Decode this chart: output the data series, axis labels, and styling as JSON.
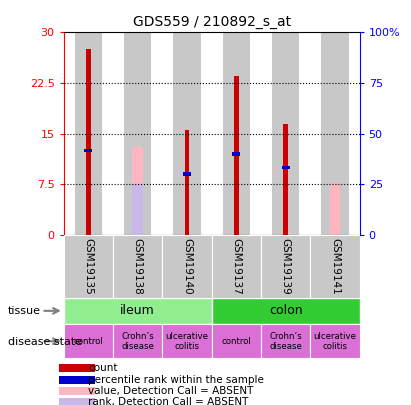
{
  "title": "GDS559 / 210892_s_at",
  "samples": [
    "GSM19135",
    "GSM19138",
    "GSM19140",
    "GSM19137",
    "GSM19139",
    "GSM19141"
  ],
  "count_values": [
    27.5,
    0,
    15.5,
    23.5,
    16.5,
    0
  ],
  "percentile_values": [
    12.5,
    0,
    9.0,
    12.0,
    10.0,
    0
  ],
  "absent_value_values": [
    0,
    13.0,
    0,
    0,
    0,
    7.5
  ],
  "absent_rank_values": [
    0,
    7.5,
    0,
    0,
    0,
    0
  ],
  "ylim": [
    0,
    30
  ],
  "yticks": [
    0,
    7.5,
    15,
    22.5,
    30
  ],
  "yticklabels_left": [
    "0",
    "7.5",
    "15",
    "22.5",
    "30"
  ],
  "yticklabels_right": [
    "0",
    "25",
    "50",
    "75",
    "100%"
  ],
  "disease_states": [
    "control",
    "Crohn’s\ndisease",
    "ulcerative\ncolitis",
    "control",
    "Crohn’s\ndisease",
    "ulcerative\ncolitis"
  ],
  "tissue_light_green": "#90EE90",
  "tissue_green": "#33CC33",
  "disease_color": "#DA70D6",
  "bar_bg_color": "#C8C8C8",
  "count_color": "#CC0000",
  "percentile_color": "#0000CC",
  "absent_value_color": "#FFB6C1",
  "absent_rank_color": "#C8B8E8",
  "legend_items": [
    {
      "color": "#CC0000",
      "label": "count"
    },
    {
      "color": "#0000CC",
      "label": "percentile rank within the sample"
    },
    {
      "color": "#FFB6C1",
      "label": "value, Detection Call = ABSENT"
    },
    {
      "color": "#C8B8E8",
      "label": "rank, Detection Call = ABSENT"
    }
  ]
}
